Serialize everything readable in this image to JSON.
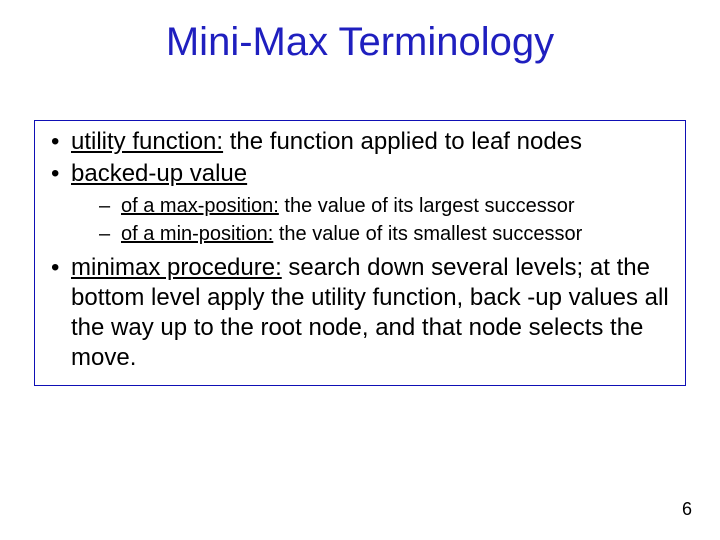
{
  "title": {
    "text": "Mini-Max Terminology",
    "color": "#1f1fbf",
    "fontsize": 40
  },
  "box": {
    "border_color": "#0f0fb5",
    "background_color": "#ffffff"
  },
  "bullets": {
    "level1_fontsize": 24,
    "level2_fontsize": 20,
    "text_color": "#000000",
    "items": [
      {
        "term": "utility function:",
        "rest": " the function applied to leaf nodes"
      },
      {
        "term": "backed-up value",
        "rest": "",
        "sub": [
          {
            "term": "of a max-position:",
            "rest": " the value of its largest successor"
          },
          {
            "term": "of a min-position:",
            "rest": " the value of its smallest successor"
          }
        ]
      },
      {
        "term": "minimax procedure:",
        "rest": " search down several levels; at the bottom level apply the utility function, back -up values all the way up to the root node, and that node selects the move."
      }
    ]
  },
  "page_number": "6"
}
